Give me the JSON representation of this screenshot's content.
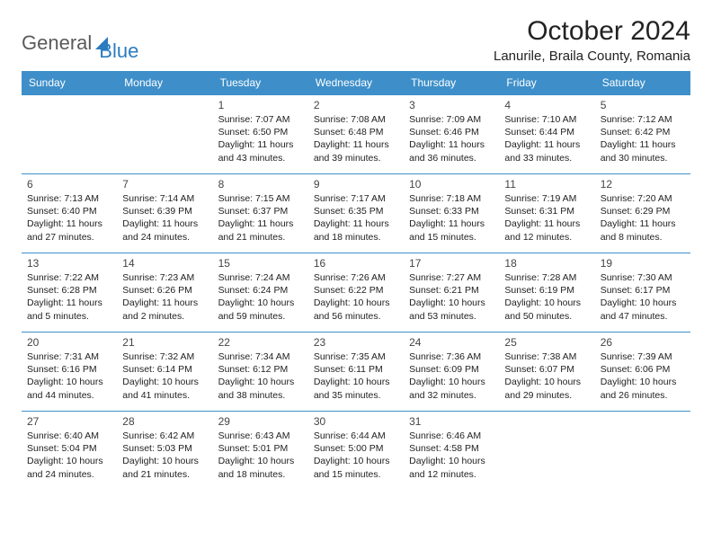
{
  "logo": {
    "part1": "General",
    "part2": "Blue"
  },
  "title": "October 2024",
  "location": "Lanurile, Braila County, Romania",
  "colors": {
    "header_bg": "#3e8fc9",
    "header_text": "#ffffff",
    "border": "#3e8fc9",
    "logo_gray": "#5a5a5a",
    "logo_blue": "#2b7bbf"
  },
  "day_headers": [
    "Sunday",
    "Monday",
    "Tuesday",
    "Wednesday",
    "Thursday",
    "Friday",
    "Saturday"
  ],
  "weeks": [
    [
      null,
      null,
      {
        "n": "1",
        "sr": "Sunrise: 7:07 AM",
        "ss": "Sunset: 6:50 PM",
        "d1": "Daylight: 11 hours",
        "d2": "and 43 minutes."
      },
      {
        "n": "2",
        "sr": "Sunrise: 7:08 AM",
        "ss": "Sunset: 6:48 PM",
        "d1": "Daylight: 11 hours",
        "d2": "and 39 minutes."
      },
      {
        "n": "3",
        "sr": "Sunrise: 7:09 AM",
        "ss": "Sunset: 6:46 PM",
        "d1": "Daylight: 11 hours",
        "d2": "and 36 minutes."
      },
      {
        "n": "4",
        "sr": "Sunrise: 7:10 AM",
        "ss": "Sunset: 6:44 PM",
        "d1": "Daylight: 11 hours",
        "d2": "and 33 minutes."
      },
      {
        "n": "5",
        "sr": "Sunrise: 7:12 AM",
        "ss": "Sunset: 6:42 PM",
        "d1": "Daylight: 11 hours",
        "d2": "and 30 minutes."
      }
    ],
    [
      {
        "n": "6",
        "sr": "Sunrise: 7:13 AM",
        "ss": "Sunset: 6:40 PM",
        "d1": "Daylight: 11 hours",
        "d2": "and 27 minutes."
      },
      {
        "n": "7",
        "sr": "Sunrise: 7:14 AM",
        "ss": "Sunset: 6:39 PM",
        "d1": "Daylight: 11 hours",
        "d2": "and 24 minutes."
      },
      {
        "n": "8",
        "sr": "Sunrise: 7:15 AM",
        "ss": "Sunset: 6:37 PM",
        "d1": "Daylight: 11 hours",
        "d2": "and 21 minutes."
      },
      {
        "n": "9",
        "sr": "Sunrise: 7:17 AM",
        "ss": "Sunset: 6:35 PM",
        "d1": "Daylight: 11 hours",
        "d2": "and 18 minutes."
      },
      {
        "n": "10",
        "sr": "Sunrise: 7:18 AM",
        "ss": "Sunset: 6:33 PM",
        "d1": "Daylight: 11 hours",
        "d2": "and 15 minutes."
      },
      {
        "n": "11",
        "sr": "Sunrise: 7:19 AM",
        "ss": "Sunset: 6:31 PM",
        "d1": "Daylight: 11 hours",
        "d2": "and 12 minutes."
      },
      {
        "n": "12",
        "sr": "Sunrise: 7:20 AM",
        "ss": "Sunset: 6:29 PM",
        "d1": "Daylight: 11 hours",
        "d2": "and 8 minutes."
      }
    ],
    [
      {
        "n": "13",
        "sr": "Sunrise: 7:22 AM",
        "ss": "Sunset: 6:28 PM",
        "d1": "Daylight: 11 hours",
        "d2": "and 5 minutes."
      },
      {
        "n": "14",
        "sr": "Sunrise: 7:23 AM",
        "ss": "Sunset: 6:26 PM",
        "d1": "Daylight: 11 hours",
        "d2": "and 2 minutes."
      },
      {
        "n": "15",
        "sr": "Sunrise: 7:24 AM",
        "ss": "Sunset: 6:24 PM",
        "d1": "Daylight: 10 hours",
        "d2": "and 59 minutes."
      },
      {
        "n": "16",
        "sr": "Sunrise: 7:26 AM",
        "ss": "Sunset: 6:22 PM",
        "d1": "Daylight: 10 hours",
        "d2": "and 56 minutes."
      },
      {
        "n": "17",
        "sr": "Sunrise: 7:27 AM",
        "ss": "Sunset: 6:21 PM",
        "d1": "Daylight: 10 hours",
        "d2": "and 53 minutes."
      },
      {
        "n": "18",
        "sr": "Sunrise: 7:28 AM",
        "ss": "Sunset: 6:19 PM",
        "d1": "Daylight: 10 hours",
        "d2": "and 50 minutes."
      },
      {
        "n": "19",
        "sr": "Sunrise: 7:30 AM",
        "ss": "Sunset: 6:17 PM",
        "d1": "Daylight: 10 hours",
        "d2": "and 47 minutes."
      }
    ],
    [
      {
        "n": "20",
        "sr": "Sunrise: 7:31 AM",
        "ss": "Sunset: 6:16 PM",
        "d1": "Daylight: 10 hours",
        "d2": "and 44 minutes."
      },
      {
        "n": "21",
        "sr": "Sunrise: 7:32 AM",
        "ss": "Sunset: 6:14 PM",
        "d1": "Daylight: 10 hours",
        "d2": "and 41 minutes."
      },
      {
        "n": "22",
        "sr": "Sunrise: 7:34 AM",
        "ss": "Sunset: 6:12 PM",
        "d1": "Daylight: 10 hours",
        "d2": "and 38 minutes."
      },
      {
        "n": "23",
        "sr": "Sunrise: 7:35 AM",
        "ss": "Sunset: 6:11 PM",
        "d1": "Daylight: 10 hours",
        "d2": "and 35 minutes."
      },
      {
        "n": "24",
        "sr": "Sunrise: 7:36 AM",
        "ss": "Sunset: 6:09 PM",
        "d1": "Daylight: 10 hours",
        "d2": "and 32 minutes."
      },
      {
        "n": "25",
        "sr": "Sunrise: 7:38 AM",
        "ss": "Sunset: 6:07 PM",
        "d1": "Daylight: 10 hours",
        "d2": "and 29 minutes."
      },
      {
        "n": "26",
        "sr": "Sunrise: 7:39 AM",
        "ss": "Sunset: 6:06 PM",
        "d1": "Daylight: 10 hours",
        "d2": "and 26 minutes."
      }
    ],
    [
      {
        "n": "27",
        "sr": "Sunrise: 6:40 AM",
        "ss": "Sunset: 5:04 PM",
        "d1": "Daylight: 10 hours",
        "d2": "and 24 minutes."
      },
      {
        "n": "28",
        "sr": "Sunrise: 6:42 AM",
        "ss": "Sunset: 5:03 PM",
        "d1": "Daylight: 10 hours",
        "d2": "and 21 minutes."
      },
      {
        "n": "29",
        "sr": "Sunrise: 6:43 AM",
        "ss": "Sunset: 5:01 PM",
        "d1": "Daylight: 10 hours",
        "d2": "and 18 minutes."
      },
      {
        "n": "30",
        "sr": "Sunrise: 6:44 AM",
        "ss": "Sunset: 5:00 PM",
        "d1": "Daylight: 10 hours",
        "d2": "and 15 minutes."
      },
      {
        "n": "31",
        "sr": "Sunrise: 6:46 AM",
        "ss": "Sunset: 4:58 PM",
        "d1": "Daylight: 10 hours",
        "d2": "and 12 minutes."
      },
      null,
      null
    ]
  ]
}
